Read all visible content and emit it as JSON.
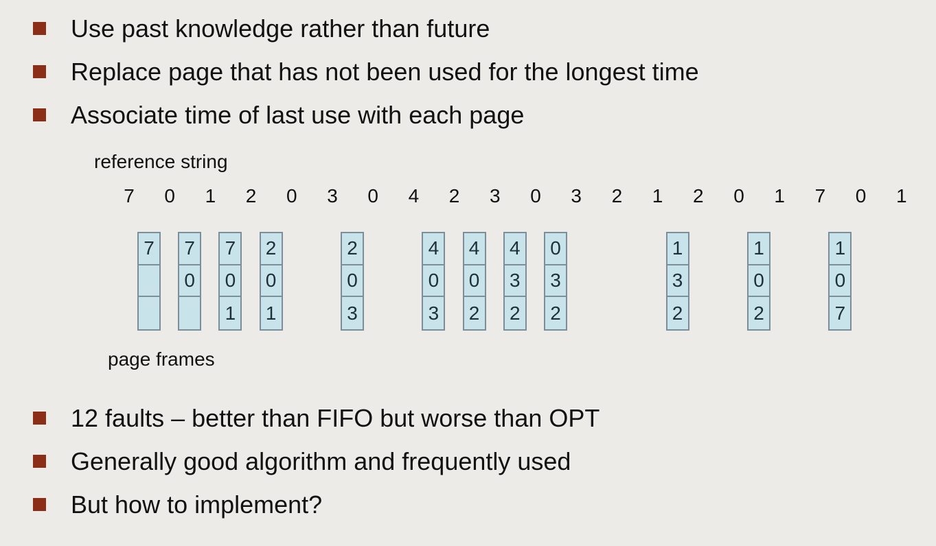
{
  "bullets_top": [
    "Use past knowledge rather than future",
    "Replace page that has not been used for the longest time",
    "Associate time of last use with each page"
  ],
  "labels": {
    "reference_string": "reference string",
    "page_frames": "page frames"
  },
  "reference_string": [
    "7",
    "0",
    "1",
    "2",
    "0",
    "3",
    "0",
    "4",
    "2",
    "3",
    "0",
    "3",
    "2",
    "1",
    "2",
    "0",
    "1",
    "7",
    "0",
    "1"
  ],
  "frames": [
    {
      "ref_index": 0,
      "cells": [
        "7",
        "",
        ""
      ]
    },
    {
      "ref_index": 1,
      "cells": [
        "7",
        "0",
        ""
      ]
    },
    {
      "ref_index": 2,
      "cells": [
        "7",
        "0",
        "1"
      ]
    },
    {
      "ref_index": 3,
      "cells": [
        "2",
        "0",
        "1"
      ]
    },
    {
      "ref_index": 5,
      "cells": [
        "2",
        "0",
        "3"
      ]
    },
    {
      "ref_index": 7,
      "cells": [
        "4",
        "0",
        "3"
      ]
    },
    {
      "ref_index": 8,
      "cells": [
        "4",
        "0",
        "2"
      ]
    },
    {
      "ref_index": 9,
      "cells": [
        "4",
        "3",
        "2"
      ]
    },
    {
      "ref_index": 10,
      "cells": [
        "0",
        "3",
        "2"
      ]
    },
    {
      "ref_index": 13,
      "cells": [
        "1",
        "3",
        "2"
      ]
    },
    {
      "ref_index": 15,
      "cells": [
        "1",
        "0",
        "2"
      ]
    },
    {
      "ref_index": 17,
      "cells": [
        "1",
        "0",
        "7"
      ]
    }
  ],
  "bullets_bottom": [
    "12 faults – better than FIFO but worse than OPT",
    "Generally good algorithm and frequently used",
    "But how to implement?"
  ],
  "colors": {
    "background": "#ecebe8",
    "bullet": "#8b2d17",
    "frame_fill": "#c9e3ea",
    "frame_border": "#7b8e9a"
  }
}
